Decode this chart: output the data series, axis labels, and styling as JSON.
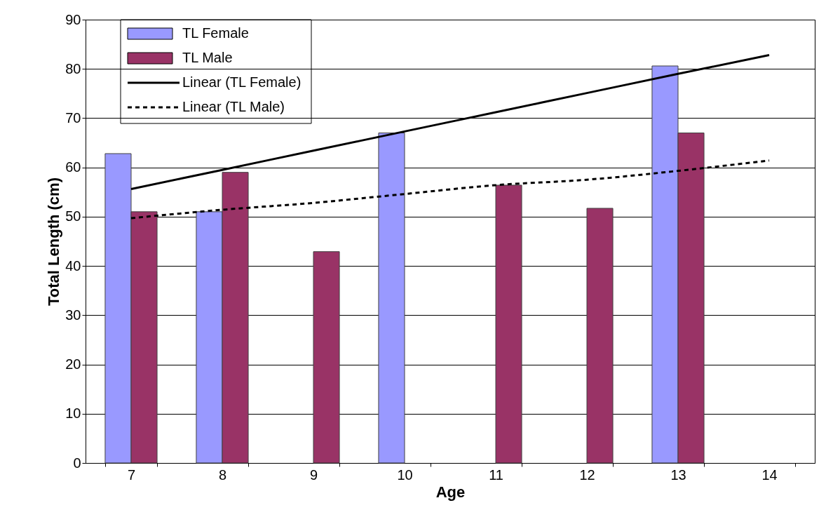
{
  "chart_data": {
    "type": "bar",
    "xlabel": "Age",
    "ylabel": "Total Length (cm)",
    "categories": [
      "7",
      "8",
      "9",
      "10",
      "11",
      "12",
      "13",
      "14"
    ],
    "series": [
      {
        "name": "TL Female",
        "color": "#9999ff",
        "values": [
          62.8,
          51,
          null,
          67,
          null,
          null,
          80.6,
          null
        ]
      },
      {
        "name": "TL Male",
        "color": "#993366",
        "values": [
          51,
          59,
          42.9,
          null,
          56.4,
          51.7,
          67,
          null
        ]
      },
      {
        "name": "Linear (TL Female)",
        "type": "line",
        "color": "#000000",
        "line_style": "solid",
        "values": [
          55.6,
          59.5,
          63.4,
          67.3,
          71.2,
          75.1,
          79.0,
          82.8
        ]
      },
      {
        "name": "Linear (TL Male)",
        "type": "line",
        "color": "#000000",
        "line_style": "dashed",
        "values": [
          49.7,
          51.4,
          52.8,
          54.6,
          56.4,
          57.5,
          59.3,
          61.4
        ]
      }
    ],
    "ylim": [
      0,
      90
    ],
    "yticks": [
      0,
      10,
      20,
      30,
      40,
      50,
      60,
      70,
      80,
      90
    ],
    "grid": "y",
    "legend": "top left",
    "marker": "none"
  }
}
